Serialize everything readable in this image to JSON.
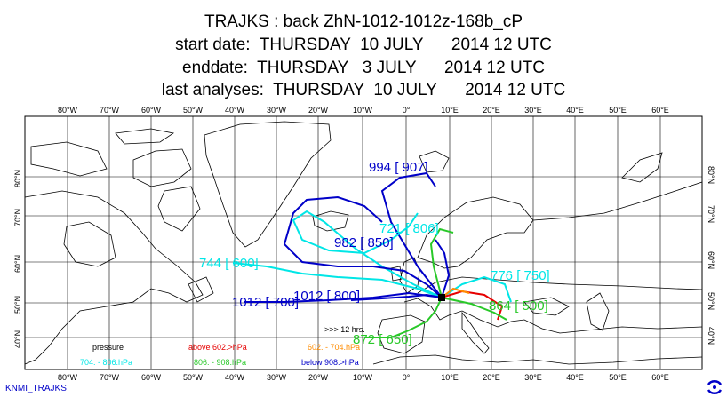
{
  "header": {
    "title": "TRAJKS : back ZhN-1012-1012z-168b_cP",
    "start": "start date:  THURSDAY  10 JULY      2014 12 UTC",
    "end": "enddate:  THURSDAY   3 JULY      2014 12 UTC",
    "last": "last analyses:  THURSDAY  10 JULY      2014 12 UTC"
  },
  "axes": {
    "lon_labels": [
      "80°W",
      "70°W",
      "60°W",
      "50°W",
      "40°W",
      "30°W",
      "20°W",
      "10°W",
      "0°",
      "10°E",
      "20°E",
      "30°E",
      "40°E",
      "50°E",
      "60°E"
    ],
    "lat_labels_left": [
      "80°N",
      "70°N",
      "60°N",
      "50°N",
      "40°N"
    ],
    "lat_labels_right": [
      "80°N",
      "70°N",
      "60°N",
      "50°N",
      "40°N"
    ]
  },
  "trajectory_labels": [
    {
      "text": "994 [ 907]",
      "color": "#0000c8"
    },
    {
      "text": "721 [ 806]",
      "color": "#00e6e6"
    },
    {
      "text": "982 [ 850]",
      "color": "#0000c8"
    },
    {
      "text": "744 [ 600]",
      "color": "#00e6e6"
    },
    {
      "text": "776 [ 750]",
      "color": "#00e6e6"
    },
    {
      "text": "1012 [ 700]",
      "color": "#0000c8"
    },
    {
      "text": "1012 [ 800]",
      "color": "#0000c8"
    },
    {
      "text": "864 [ 500]",
      "color": "#28c828"
    },
    {
      "text": "872 [ 650]",
      "color": "#28c828"
    }
  ],
  "legend": {
    "interval": ">>> 12 hrs.",
    "pressure": "pressure",
    "above": "above  602.>hPa",
    "band1": "602. -     704.hPa",
    "band2": "704. -     806.hPa",
    "band3": "806. -     908.hPa",
    "below": "below  908.>hPa",
    "colors": {
      "above": "#e60000",
      "band1": "#ff8c00",
      "band2": "#00e6e6",
      "band3": "#28c828",
      "below": "#0000c8"
    }
  },
  "footer": {
    "source": "KNMI_TRAJKS"
  }
}
